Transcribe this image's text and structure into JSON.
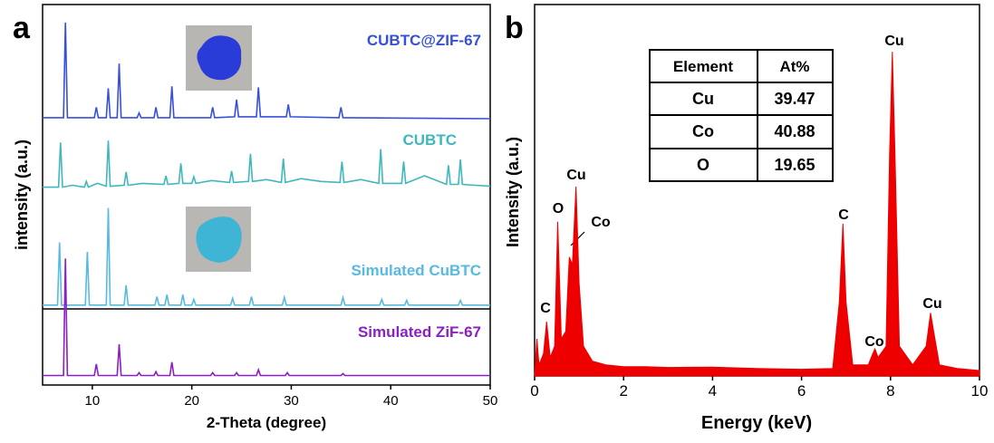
{
  "chart_data": [
    {
      "type": "line",
      "panel": "a",
      "xlabel": "2-Theta (degree)",
      "ylabel": "intensity (a.u.)",
      "xlim": [
        5,
        50
      ],
      "xticks": [
        10,
        20,
        30,
        40,
        50
      ],
      "ylim": [
        0,
        4
      ],
      "series": [
        {
          "name": "CUBTC@ZIF-67",
          "color": "#3650d8",
          "x": [
            5,
            7.1,
            7.3,
            7.5,
            10.2,
            10.4,
            10.6,
            11.4,
            11.6,
            11.8,
            12.5,
            12.7,
            12.9,
            14.5,
            14.7,
            14.9,
            16.2,
            16.4,
            16.6,
            17.8,
            18,
            18.2,
            21.9,
            22.1,
            22.3,
            24.3,
            24.5,
            24.7,
            26.5,
            26.7,
            26.9,
            29.5,
            29.7,
            29.9,
            34.8,
            35,
            35.2,
            50
          ],
          "values": [
            2.81,
            2.81,
            3.81,
            2.81,
            2.81,
            2.92,
            2.81,
            2.81,
            3.12,
            2.81,
            2.81,
            3.38,
            2.81,
            2.81,
            2.86,
            2.81,
            2.81,
            2.92,
            2.81,
            2.81,
            3.14,
            2.81,
            2.81,
            2.92,
            2.81,
            2.82,
            3.0,
            2.82,
            2.82,
            3.13,
            2.82,
            2.82,
            2.95,
            2.82,
            2.81,
            2.92,
            2.81,
            2.8
          ]
        },
        {
          "name": "CUBTC",
          "color": "#3fb7bd",
          "x": [
            5,
            6.6,
            6.8,
            7.0,
            8,
            9.2,
            9.4,
            9.6,
            10.5,
            11.4,
            11.6,
            11.8,
            13.2,
            13.4,
            13.6,
            15,
            17.2,
            17.4,
            17.6,
            18.7,
            18.9,
            19.1,
            20,
            20.2,
            20.4,
            22,
            23.8,
            24,
            24.2,
            25.7,
            25.9,
            26.1,
            27.5,
            29,
            29.2,
            29.4,
            31,
            33,
            34.9,
            35.1,
            35.3,
            37,
            38.8,
            39,
            39.2,
            41.1,
            41.3,
            41.5,
            43.4,
            45.6,
            45.8,
            46,
            46.8,
            47,
            47.2,
            48.5,
            50
          ],
          "values": [
            2.08,
            2.08,
            2.55,
            2.08,
            2.1,
            2.08,
            2.14,
            2.08,
            2.12,
            2.09,
            2.57,
            2.09,
            2.1,
            2.24,
            2.1,
            2.12,
            2.11,
            2.2,
            2.11,
            2.12,
            2.33,
            2.12,
            2.12,
            2.19,
            2.12,
            2.15,
            2.13,
            2.25,
            2.13,
            2.14,
            2.43,
            2.14,
            2.16,
            2.13,
            2.38,
            2.13,
            2.17,
            2.14,
            2.13,
            2.35,
            2.13,
            2.16,
            2.12,
            2.48,
            2.12,
            2.12,
            2.35,
            2.12,
            2.2,
            2.11,
            2.31,
            2.11,
            2.11,
            2.37,
            2.11,
            2.1,
            2.09
          ]
        },
        {
          "name": "Simulated CuBTC",
          "color": "#58b9e2",
          "x": [
            5,
            6.5,
            6.7,
            6.9,
            9.3,
            9.5,
            9.7,
            11.4,
            11.6,
            11.8,
            13.2,
            13.4,
            13.6,
            16.3,
            16.5,
            16.7,
            17.3,
            17.5,
            17.7,
            18.9,
            19.1,
            19.3,
            20,
            20.2,
            20.4,
            23.9,
            24.1,
            24.3,
            25.8,
            26,
            26.2,
            29.1,
            29.3,
            29.5,
            35,
            35.2,
            35.4,
            38.9,
            39.1,
            39.3,
            41.4,
            41.6,
            41.8,
            46.8,
            47,
            47.2,
            50
          ],
          "values": [
            0.84,
            0.84,
            1.5,
            0.84,
            0.84,
            1.4,
            0.84,
            0.84,
            1.86,
            0.84,
            0.84,
            1.05,
            0.84,
            0.84,
            0.93,
            0.84,
            0.84,
            0.95,
            0.84,
            0.84,
            0.95,
            0.84,
            0.84,
            0.9,
            0.84,
            0.84,
            0.91,
            0.84,
            0.84,
            0.93,
            0.84,
            0.84,
            0.92,
            0.84,
            0.84,
            0.92,
            0.84,
            0.84,
            0.9,
            0.84,
            0.84,
            0.89,
            0.84,
            0.84,
            0.89,
            0.84,
            0.84
          ]
        },
        {
          "name": "Simulated ZiF-67",
          "color": "#8a1fc4",
          "x": [
            5,
            7.1,
            7.3,
            7.5,
            10.2,
            10.4,
            10.6,
            12.5,
            12.7,
            12.9,
            14.5,
            14.7,
            14.9,
            16.2,
            16.4,
            16.6,
            17.8,
            18,
            18.2,
            21.9,
            22.1,
            22.3,
            24.3,
            24.5,
            24.7,
            26.5,
            26.7,
            26.9,
            29.4,
            29.6,
            29.8,
            35,
            35.2,
            35.4,
            50
          ],
          "values": [
            0.1,
            0.1,
            1.33,
            0.1,
            0.1,
            0.22,
            0.1,
            0.1,
            0.43,
            0.1,
            0.1,
            0.13,
            0.1,
            0.1,
            0.14,
            0.1,
            0.1,
            0.24,
            0.1,
            0.1,
            0.13,
            0.1,
            0.1,
            0.13,
            0.1,
            0.1,
            0.16,
            0.1,
            0.1,
            0.13,
            0.1,
            0.1,
            0.12,
            0.1,
            0.1
          ]
        }
      ]
    },
    {
      "type": "area",
      "panel": "b",
      "xlabel": "Energy (keV)",
      "ylabel": "Intensity (a.u.)",
      "xlim": [
        0,
        10
      ],
      "xticks": [
        0,
        2,
        4,
        6,
        8,
        10
      ],
      "ylim": [
        0,
        100
      ],
      "color": "#ee0000",
      "x": [
        0,
        0.05,
        0.1,
        0.2,
        0.27,
        0.35,
        0.45,
        0.52,
        0.6,
        0.7,
        0.78,
        0.85,
        0.93,
        1.0,
        1.1,
        1.3,
        1.6,
        2,
        2.5,
        3,
        4,
        5,
        6,
        6.7,
        6.85,
        6.93,
        7.0,
        7.15,
        7.5,
        7.6,
        7.65,
        7.72,
        7.9,
        7.98,
        8.04,
        8.1,
        8.2,
        8.5,
        8.8,
        8.9,
        8.97,
        9.1,
        9.5,
        10
      ],
      "values": [
        0,
        10,
        3,
        6,
        14.6,
        5,
        8,
        41.5,
        10,
        12,
        32,
        30,
        51,
        25,
        8,
        4,
        3,
        2.5,
        2.5,
        2.3,
        2.4,
        2,
        1.8,
        2,
        20,
        41,
        20,
        3,
        3,
        6,
        7.3,
        5,
        8,
        60,
        87.3,
        60,
        8,
        3,
        8,
        17,
        12,
        3,
        2,
        1.5
      ],
      "annotations": [
        "C",
        "O",
        "Cu",
        "Co",
        "C",
        "Co",
        "Cu",
        "Cu"
      ],
      "table": {
        "header": [
          "Element",
          "At%"
        ],
        "rows": [
          [
            "Cu",
            39.47
          ],
          [
            "Co",
            40.88
          ],
          [
            "O",
            19.65
          ]
        ]
      }
    }
  ]
}
